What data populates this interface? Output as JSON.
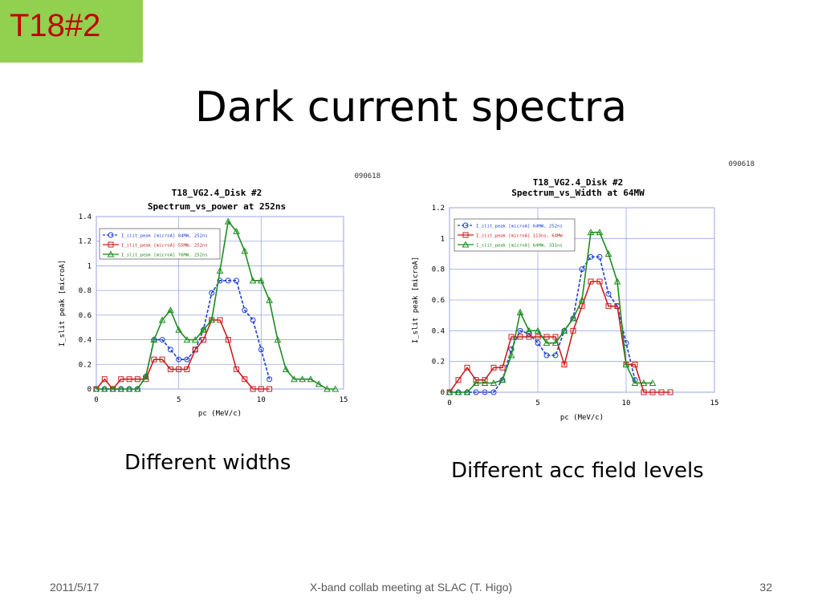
{
  "slide": {
    "tag": "T18#2",
    "title": "Dark current spectra",
    "caption_left": "Different widths",
    "caption_right": "Different acc field levels",
    "footer_date": "2011/5/17",
    "footer_center": "X-band collab meeting at SLAC (T. Higo)",
    "footer_page": "32"
  },
  "colors": {
    "tag_bg": "#92d050",
    "tag_text": "#c00000",
    "series_blue": "#1f3fd0",
    "series_red": "#c81e1e",
    "series_green": "#1e8c1e",
    "grid": "#9aa6e6"
  },
  "chart_data": [
    {
      "type": "line",
      "stamp": "090618",
      "title": "T18_VG2.4_Disk #2",
      "subtitle": "Spectrum_vs_power at 252ns",
      "xlabel": "pc (MeV/c)",
      "ylabel": "I_slit peak [microA]",
      "xlim": [
        0,
        15
      ],
      "ylim": [
        0,
        1.4
      ],
      "xticks": [
        0,
        5,
        10,
        15
      ],
      "yticks": [
        0,
        0.2,
        0.4,
        0.6,
        0.8,
        1,
        1.2,
        1.4
      ],
      "ytick_labels": [
        "0",
        "0.2",
        "0.4",
        "0.6",
        "0.8",
        "1",
        "1.2",
        "1.4"
      ],
      "legend_position": "top-left",
      "series": [
        {
          "name": "I_slit_peak [microA]  84MW, 252ns",
          "color": "#1f3fd0",
          "marker": "circle",
          "dashed": true,
          "x": [
            0,
            0.5,
            1,
            1.5,
            2,
            2.5,
            3,
            3.5,
            4,
            4.5,
            5,
            5.5,
            6,
            6.5,
            7,
            7.5,
            8,
            8.5,
            9,
            9.5,
            10,
            10.5
          ],
          "y": [
            0,
            0,
            0,
            0,
            0,
            0,
            0.1,
            0.4,
            0.4,
            0.32,
            0.24,
            0.24,
            0.32,
            0.48,
            0.78,
            0.88,
            0.88,
            0.88,
            0.64,
            0.56,
            0.32,
            0.08
          ]
        },
        {
          "name": "I_slit_peak [microA]  55MW, 252ns",
          "color": "#c81e1e",
          "marker": "square",
          "dashed": false,
          "x": [
            0,
            0.5,
            1,
            1.5,
            2,
            2.5,
            3,
            3.5,
            4,
            4.5,
            5,
            5.5,
            6,
            6.5,
            7,
            7.5,
            8,
            8.5,
            9,
            9.5,
            10,
            10.5
          ],
          "y": [
            0,
            0.08,
            0,
            0.08,
            0.08,
            0.08,
            0.08,
            0.24,
            0.24,
            0.16,
            0.16,
            0.16,
            0.32,
            0.4,
            0.56,
            0.56,
            0.4,
            0.16,
            0.08,
            0,
            0,
            0
          ]
        },
        {
          "name": "I_slit_peak [microA]  76MW, 252ns",
          "color": "#1e8c1e",
          "marker": "triangle",
          "dashed": false,
          "x": [
            0,
            0.5,
            1,
            1.5,
            2,
            2.5,
            3,
            3.5,
            4,
            4.5,
            5,
            5.5,
            6,
            6.5,
            7,
            7.5,
            8,
            8.5,
            9,
            9.5,
            10,
            10.5,
            11,
            11.5,
            12,
            12.5,
            13,
            13.5,
            14,
            14.5
          ],
          "y": [
            0,
            0,
            0,
            0,
            0,
            0,
            0.1,
            0.4,
            0.56,
            0.64,
            0.48,
            0.4,
            0.4,
            0.48,
            0.56,
            0.96,
            1.36,
            1.28,
            1.12,
            0.88,
            0.88,
            0.72,
            0.4,
            0.16,
            0.08,
            0.08,
            0.08,
            0.04,
            0,
            0
          ]
        }
      ]
    },
    {
      "type": "line",
      "stamp": "090618",
      "title": "T18_VG2.4_Disk #2",
      "subtitle": "Spectrum_vs_Width at 64MW",
      "xlabel": "pc (MeV/c)",
      "ylabel": "I_slit peak [microA]",
      "xlim": [
        0,
        15
      ],
      "ylim": [
        0,
        1.2
      ],
      "xticks": [
        0,
        5,
        10,
        15
      ],
      "yticks": [
        0,
        0.2,
        0.4,
        0.6,
        0.8,
        1,
        1.2
      ],
      "ytick_labels": [
        "0",
        "0.2",
        "0.4",
        "0.6",
        "0.8",
        "1",
        "1.2"
      ],
      "legend_position": "top-left",
      "series": [
        {
          "name": "I_slit_peak [microA]  64MW, 252ns",
          "color": "#1f3fd0",
          "marker": "circle",
          "dashed": true,
          "x": [
            0,
            0.5,
            1,
            1.5,
            2,
            2.5,
            3,
            3.5,
            4,
            4.5,
            5,
            5.5,
            6,
            6.5,
            7,
            7.5,
            8,
            8.5,
            9,
            9.5,
            10,
            10.5
          ],
          "y": [
            0,
            0,
            0,
            0,
            0,
            0,
            0.08,
            0.28,
            0.4,
            0.38,
            0.32,
            0.24,
            0.24,
            0.4,
            0.48,
            0.8,
            0.88,
            0.88,
            0.64,
            0.56,
            0.32,
            0.08
          ]
        },
        {
          "name": "I_slit_peak [microA]  113ns, 64MW",
          "color": "#c81e1e",
          "marker": "square",
          "dashed": false,
          "x": [
            0,
            0.5,
            1,
            1.5,
            2,
            2.5,
            3,
            3.5,
            4,
            4.5,
            5,
            5.5,
            6,
            6.5,
            7,
            7.5,
            8,
            8.5,
            9,
            9.5,
            10,
            10.5,
            11,
            11.5,
            12,
            12.5
          ],
          "y": [
            0,
            0.08,
            0.16,
            0.08,
            0.08,
            0.16,
            0.16,
            0.36,
            0.36,
            0.36,
            0.36,
            0.36,
            0.36,
            0.18,
            0.4,
            0.56,
            0.72,
            0.72,
            0.56,
            0.56,
            0.18,
            0.18,
            0,
            0,
            0,
            0
          ]
        },
        {
          "name": "I_slit_peak [microA]  64MW, 331ns",
          "color": "#1e8c1e",
          "marker": "triangle",
          "dashed": false,
          "x": [
            0,
            0.5,
            1,
            1.5,
            2,
            2.5,
            3,
            3.5,
            4,
            4.5,
            5,
            5.5,
            6,
            6.5,
            7,
            7.5,
            8,
            8.5,
            9,
            9.5,
            10,
            10.5,
            11,
            11.5
          ],
          "y": [
            0,
            0,
            0,
            0.06,
            0.06,
            0.06,
            0.08,
            0.24,
            0.52,
            0.4,
            0.4,
            0.32,
            0.32,
            0.4,
            0.48,
            0.6,
            1.04,
            1.04,
            0.9,
            0.72,
            0.18,
            0.06,
            0.06,
            0.06
          ]
        }
      ]
    }
  ]
}
